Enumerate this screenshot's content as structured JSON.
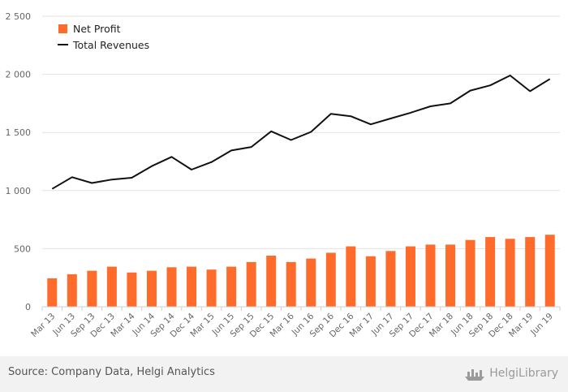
{
  "chart_data": {
    "type": "bar",
    "categories": [
      "Mar 13",
      "Jun 13",
      "Sep 13",
      "Dec 13",
      "Mar 14",
      "Jun 14",
      "Sep 14",
      "Dec 14",
      "Mar 15",
      "Jun 15",
      "Sep 15",
      "Dec 15",
      "Mar 16",
      "Jun 16",
      "Sep 16",
      "Dec 16",
      "Mar 17",
      "Jun 17",
      "Sep 17",
      "Dec 17",
      "Mar 18",
      "Jun 18",
      "Sep 18",
      "Dec 18",
      "Mar 19",
      "Jun 19"
    ],
    "series": [
      {
        "name": "Net Profit",
        "type": "bar",
        "color": "#ff6b2b",
        "values": [
          245,
          280,
          310,
          345,
          295,
          310,
          340,
          345,
          320,
          345,
          385,
          440,
          385,
          415,
          465,
          520,
          435,
          480,
          520,
          535,
          535,
          575,
          600,
          585,
          600,
          620
        ]
      },
      {
        "name": "Total Revenues",
        "type": "line",
        "color": "#111111",
        "values": [
          1015,
          1115,
          1065,
          1095,
          1110,
          1210,
          1290,
          1180,
          1245,
          1345,
          1375,
          1510,
          1435,
          1505,
          1660,
          1640,
          1570,
          1620,
          1670,
          1725,
          1750,
          1860,
          1905,
          1990,
          1855,
          1960
        ]
      }
    ],
    "ylim": [
      0,
      2500
    ],
    "yticks": [
      "0",
      "500",
      "1 000",
      "1 500",
      "2 000",
      "2 500"
    ],
    "ytick_values": [
      0,
      500,
      1000,
      1500,
      2000,
      2500
    ],
    "grid": true,
    "legend": "top-left"
  },
  "footer": {
    "source": "Source: Company Data, Helgi Analytics",
    "brand": "HelgiLibrary"
  },
  "icons": {
    "brand": "ship-icon"
  }
}
